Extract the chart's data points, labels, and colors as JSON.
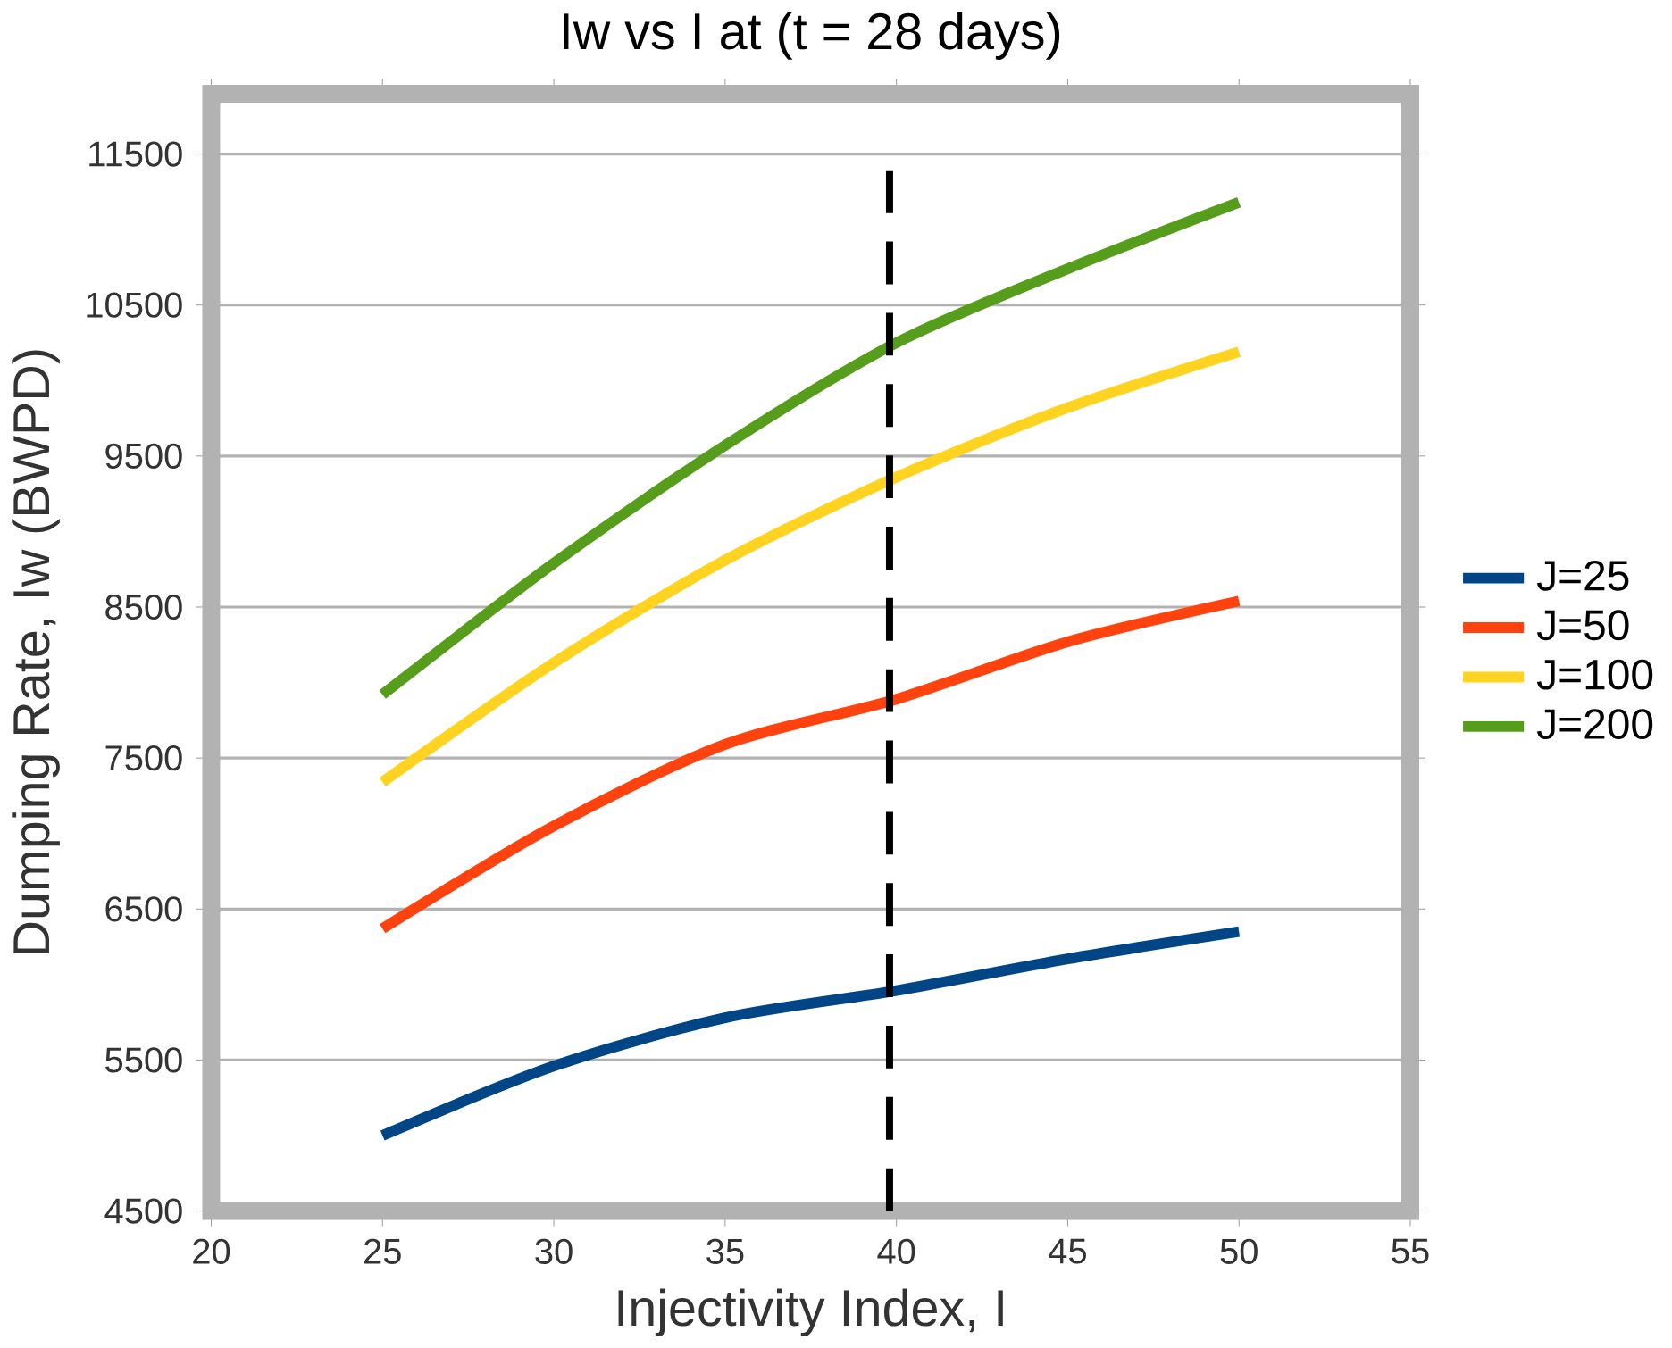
{
  "chart_data": {
    "type": "line",
    "title": "Iw vs I at (t = 28 days)",
    "xlabel": "Injectivity Index, I",
    "ylabel": "Dumping Rate, Iw (BWPD)",
    "x": [
      25,
      30,
      35,
      40,
      45,
      50
    ],
    "series": [
      {
        "name": "J=25",
        "color": "#004586",
        "values": [
          5000,
          5460,
          5780,
          5960,
          6170,
          6350
        ]
      },
      {
        "name": "J=50",
        "color": "#ff420e",
        "values": [
          6370,
          7050,
          7590,
          7890,
          8270,
          8540
        ]
      },
      {
        "name": "J=100",
        "color": "#ffd320",
        "values": [
          7340,
          8130,
          8810,
          9360,
          9820,
          10190
        ]
      },
      {
        "name": "J=200",
        "color": "#579d1c",
        "values": [
          7920,
          8790,
          9570,
          10250,
          10740,
          11180
        ]
      }
    ],
    "xlim": [
      20,
      55
    ],
    "xticks": [
      20,
      25,
      30,
      35,
      40,
      45,
      50,
      55
    ],
    "ylim": [
      4500,
      11900
    ],
    "yticks": [
      4500,
      5500,
      6500,
      7500,
      8500,
      9500,
      10500,
      11500
    ],
    "ref_lines": [
      {
        "axis": "x",
        "value": 39.8,
        "color": "#000000",
        "line_style": "dashed"
      }
    ],
    "grid": "y",
    "legend": "right",
    "marker": "none",
    "line_style": "solid"
  }
}
